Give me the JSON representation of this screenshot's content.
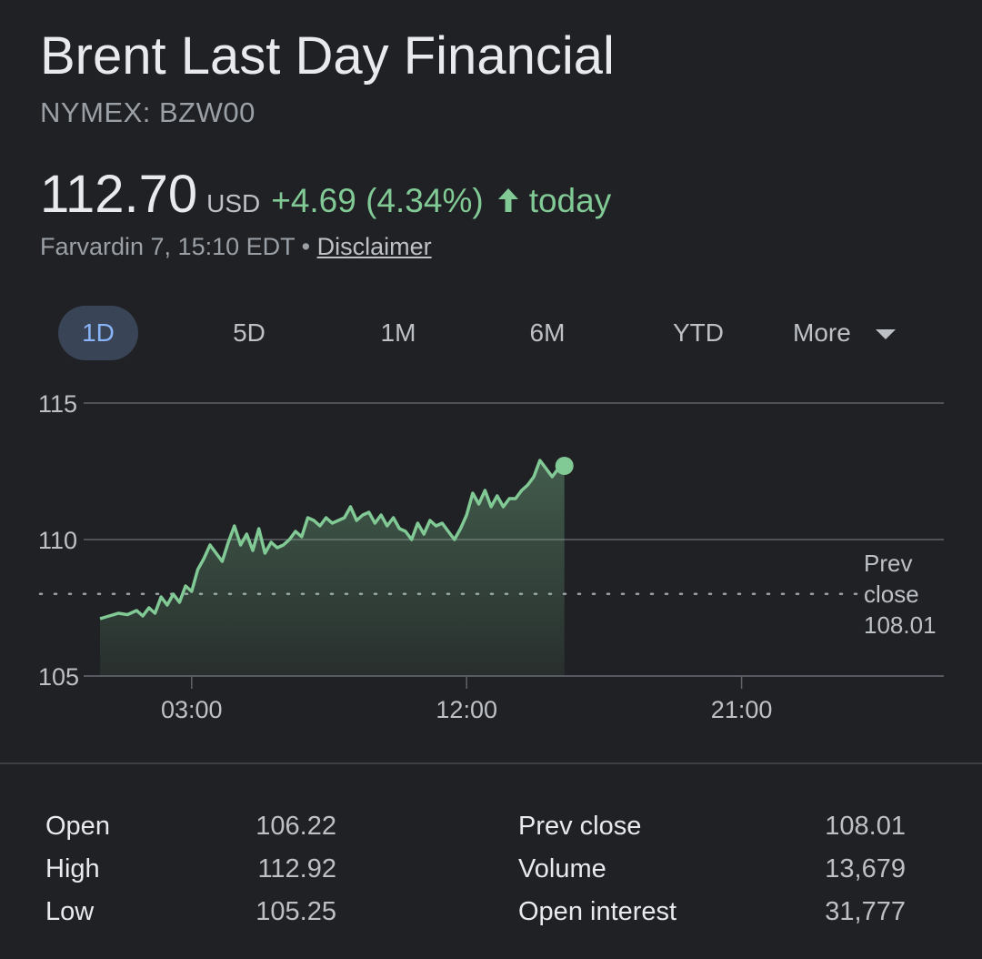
{
  "header": {
    "title": "Brent Last Day Financial",
    "ticker": "NYMEX: BZW00"
  },
  "quote": {
    "price": "112.70",
    "currency": "USD",
    "change": "+4.69 (4.34%)",
    "period": "today",
    "timestamp": "Farvardin 7, 15:10 EDT",
    "separator": "•",
    "disclaimer": "Disclaimer"
  },
  "tabs": [
    {
      "label": "1D",
      "active": true
    },
    {
      "label": "5D",
      "active": false
    },
    {
      "label": "1M",
      "active": false
    },
    {
      "label": "6M",
      "active": false
    },
    {
      "label": "YTD",
      "active": false
    },
    {
      "label": "More",
      "active": false
    }
  ],
  "colors": {
    "positive": "#81c995",
    "background": "#202124",
    "active_tab_bg": "#394457",
    "active_tab_text": "#8ab4f8"
  },
  "icons": {
    "change_arrow": "arrow-up-icon",
    "more_dropdown": "caret-down-icon"
  },
  "chart_data": {
    "type": "area",
    "title": "",
    "xlabel": "",
    "ylabel": "",
    "ylim": [
      105,
      115
    ],
    "xlim": [
      -1,
      27
    ],
    "y_ticks": [
      115,
      110,
      105
    ],
    "y_tick_labels": [
      "115",
      "110",
      "105"
    ],
    "x_ticks": [
      3,
      12,
      21
    ],
    "x_tick_labels": [
      "03:00",
      "12:00",
      "21:00"
    ],
    "grid": true,
    "prev_close": {
      "value": 108.01,
      "label_line1": "Prev",
      "label_line2": "close",
      "label_value": "108.01"
    },
    "series": [
      {
        "x": [
          -0.0,
          0.3,
          0.6,
          0.9,
          1.2,
          1.4,
          1.6,
          1.8,
          2.0,
          2.2,
          2.4,
          2.6,
          2.8,
          3.0,
          3.2,
          3.4,
          3.6,
          3.8,
          4.0,
          4.2,
          4.4,
          4.6,
          4.8,
          5.0,
          5.2,
          5.4,
          5.6,
          5.8,
          6.0,
          6.2,
          6.4,
          6.6,
          6.8,
          7.0,
          7.2,
          7.4,
          7.6,
          7.8,
          8.0,
          8.2,
          8.4,
          8.6,
          8.8,
          9.0,
          9.2,
          9.4,
          9.6,
          9.8,
          10.0,
          10.2,
          10.4,
          10.6,
          10.8,
          11.0,
          11.2,
          11.4,
          11.6,
          11.8,
          12.0,
          12.2,
          12.4,
          12.6,
          12.8,
          13.0,
          13.2,
          13.4,
          13.6,
          13.8,
          14.0,
          14.2,
          14.4,
          14.6,
          14.8,
          15.0,
          15.2
        ],
        "y": [
          107.1,
          107.2,
          107.3,
          107.25,
          107.4,
          107.2,
          107.5,
          107.3,
          107.9,
          107.6,
          108.0,
          107.7,
          108.3,
          108.1,
          108.9,
          109.3,
          109.8,
          109.5,
          109.2,
          109.9,
          110.5,
          109.8,
          110.2,
          109.6,
          110.4,
          109.5,
          109.9,
          109.7,
          109.8,
          110.0,
          110.3,
          110.1,
          110.8,
          110.7,
          110.5,
          110.8,
          110.6,
          110.7,
          110.8,
          111.2,
          110.7,
          110.9,
          111.0,
          110.6,
          110.9,
          110.5,
          110.8,
          110.4,
          110.3,
          110.0,
          110.6,
          110.2,
          110.7,
          110.5,
          110.6,
          110.3,
          110.0,
          110.4,
          110.9,
          111.7,
          111.3,
          111.8,
          111.2,
          111.6,
          111.2,
          111.5,
          111.5,
          111.8,
          112.0,
          112.3,
          112.9,
          112.6,
          112.3,
          112.6,
          112.7
        ]
      }
    ],
    "last_point": {
      "x": 15.2,
      "y": 112.7
    }
  },
  "stats": {
    "left": [
      {
        "label": "Open",
        "value": "106.22"
      },
      {
        "label": "High",
        "value": "112.92"
      },
      {
        "label": "Low",
        "value": "105.25"
      }
    ],
    "right": [
      {
        "label": "Prev close",
        "value": "108.01"
      },
      {
        "label": "Volume",
        "value": "13,679"
      },
      {
        "label": "Open interest",
        "value": "31,777"
      }
    ]
  }
}
